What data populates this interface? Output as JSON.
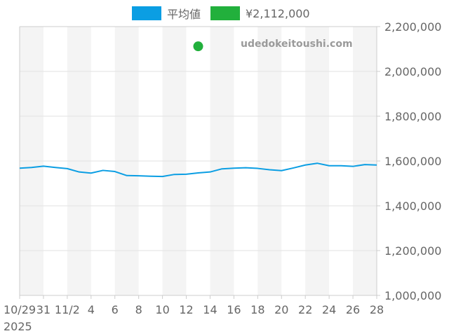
{
  "legend": [
    {
      "label": "平均値",
      "color": "#0b9ee3"
    },
    {
      "label": "¥2,112,000",
      "color": "#22b03c"
    }
  ],
  "watermark": "udedokeitoushi.com",
  "chart_data": {
    "type": "line",
    "x": [
      "2025-10-29",
      "2025-10-30",
      "2025-10-31",
      "2025-11-01",
      "2025-11-02",
      "2025-11-03",
      "2025-11-04",
      "2025-11-05",
      "2025-11-06",
      "2025-11-07",
      "2025-11-08",
      "2025-11-09",
      "2025-11-10",
      "2025-11-11",
      "2025-11-12",
      "2025-11-13",
      "2025-11-14",
      "2025-11-15",
      "2025-11-16",
      "2025-11-17",
      "2025-11-18",
      "2025-11-19",
      "2025-11-20",
      "2025-11-21",
      "2025-11-22",
      "2025-11-23",
      "2025-11-24",
      "2025-11-25",
      "2025-11-26",
      "2025-11-27",
      "2025-11-28"
    ],
    "series": [
      {
        "name": "平均値",
        "color": "#0b9ee3",
        "values": [
          1568000,
          1571000,
          1577000,
          1571000,
          1566000,
          1551000,
          1546000,
          1558000,
          1553000,
          1535000,
          1534000,
          1532000,
          1531000,
          1540000,
          1541000,
          1547000,
          1551000,
          1565000,
          1568000,
          1570000,
          1567000,
          1561000,
          1557000,
          1569000,
          1582000,
          1590000,
          1579000,
          1579000,
          1576000,
          1584000,
          1582000
        ]
      },
      {
        "name": "¥2,112,000",
        "color": "#22b03c",
        "type": "point",
        "points": [
          {
            "x": "2025-11-13",
            "y": 2112000
          }
        ]
      }
    ],
    "x_tick_labels": [
      "10/29",
      "31",
      "11/2",
      "4",
      "6",
      "8",
      "10",
      "12",
      "14",
      "16",
      "18",
      "20",
      "22",
      "24",
      "26",
      "28"
    ],
    "x_year_label": "2025",
    "y_tick_labels": [
      "1,000,000",
      "1,200,000",
      "1,400,000",
      "1,600,000",
      "1,800,000",
      "2,000,000",
      "2,200,000"
    ],
    "ylim": [
      1000000,
      2200000
    ],
    "y_axis_side": "right",
    "grid": true
  }
}
